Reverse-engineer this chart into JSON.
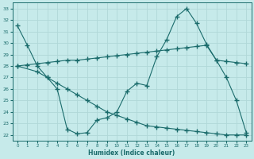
{
  "xlabel": "Humidex (Indice chaleur)",
  "xlim": [
    -0.5,
    23.5
  ],
  "ylim": [
    21.5,
    33.5
  ],
  "yticks": [
    22,
    23,
    24,
    25,
    26,
    27,
    28,
    29,
    30,
    31,
    32,
    33
  ],
  "xticks": [
    0,
    1,
    2,
    3,
    4,
    5,
    6,
    7,
    8,
    9,
    10,
    11,
    12,
    13,
    14,
    15,
    16,
    17,
    18,
    19,
    20,
    21,
    22,
    23
  ],
  "bg_color": "#c6eaea",
  "grid_color": "#b0d8d8",
  "line_color": "#1a6b6b",
  "line1_x": [
    0,
    1,
    2,
    3,
    4,
    5,
    6,
    7,
    8,
    9,
    10,
    11,
    12,
    13,
    14,
    15,
    16,
    17,
    18,
    19,
    20,
    21,
    22,
    23
  ],
  "line1_y": [
    31.5,
    29.8,
    28.0,
    27.0,
    26.0,
    22.5,
    22.1,
    22.2,
    23.3,
    23.5,
    24.0,
    25.8,
    26.5,
    26.3,
    28.8,
    30.3,
    32.3,
    33.0,
    31.7,
    29.9,
    28.5,
    27.0,
    25.0,
    22.2
  ],
  "line2_x": [
    0,
    1,
    2,
    3,
    4,
    5,
    6,
    7,
    8,
    9,
    10,
    11,
    12,
    13,
    14,
    15,
    16,
    17,
    18,
    19,
    20,
    21,
    22,
    23
  ],
  "line2_y": [
    28.0,
    28.1,
    28.2,
    28.3,
    28.4,
    28.5,
    28.5,
    28.6,
    28.7,
    28.8,
    28.9,
    29.0,
    29.1,
    29.2,
    29.3,
    29.4,
    29.5,
    29.6,
    29.7,
    29.8,
    28.5,
    28.4,
    28.3,
    28.2
  ],
  "line3_x": [
    0,
    2,
    3,
    4,
    5,
    6,
    7,
    8,
    9,
    10,
    11,
    12,
    13,
    14,
    15,
    16,
    17,
    18,
    19,
    20,
    21,
    22,
    23
  ],
  "line3_y": [
    28.0,
    27.5,
    27.0,
    26.5,
    26.0,
    25.5,
    25.0,
    24.5,
    24.0,
    23.7,
    23.4,
    23.1,
    22.8,
    22.7,
    22.6,
    22.5,
    22.4,
    22.3,
    22.2,
    22.1,
    22.0,
    22.0,
    22.0
  ]
}
